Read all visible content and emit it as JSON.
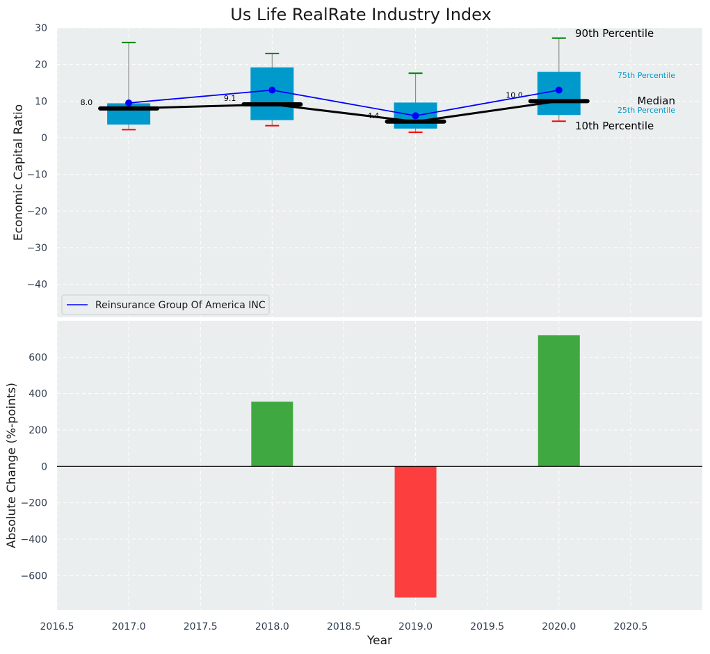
{
  "chart_data": [
    {
      "type": "box",
      "title": "Us Life RealRate Industry Index",
      "ylabel": "Economic Capital Ratio",
      "ylim": [
        -49,
        30
      ],
      "yticks": [
        30,
        20,
        10,
        0,
        -10,
        -20,
        -30,
        -40
      ],
      "xlim": [
        2016.5,
        2021.0
      ],
      "grid": true,
      "boxes": [
        {
          "x": 2017,
          "p10": 2.2,
          "p25": 3.6,
          "median": 8.0,
          "p75": 9.4,
          "p90": 26.0
        },
        {
          "x": 2018,
          "p10": 3.3,
          "p25": 4.8,
          "median": 9.1,
          "p75": 19.2,
          "p90": 23.0
        },
        {
          "x": 2019,
          "p10": 1.5,
          "p25": 2.5,
          "median": 4.4,
          "p75": 9.6,
          "p90": 17.6
        },
        {
          "x": 2020,
          "p10": 4.5,
          "p25": 6.2,
          "median": 10.0,
          "p75": 18.0,
          "p90": 27.2
        }
      ],
      "median_labels": [
        "8.0",
        "9.1",
        "4.4",
        "10.0"
      ],
      "series": [
        {
          "name": "Reinsurance Group Of America INC",
          "x": [
            2017,
            2018,
            2019,
            2020
          ],
          "y": [
            9.5,
            13.0,
            6.0,
            13.0
          ],
          "color": "#0000ff"
        }
      ],
      "annotations": {
        "p90": "90th Percentile",
        "p75": "75th Percentile",
        "median": "Median",
        "p25": "25th Percentile",
        "p10": "10th Percentile"
      },
      "legend": "lower-left",
      "colors": {
        "box": "#0099cc",
        "median": "#000000",
        "p90_cap": "#008000",
        "p10_cap": "#ff0000",
        "background": "#eaeeef"
      }
    },
    {
      "type": "bar",
      "ylabel": "Absolute Change (%-points)",
      "xlabel": "Year",
      "ylim": [
        -790,
        800
      ],
      "yticks": [
        600,
        400,
        200,
        0,
        -200,
        -400,
        -600
      ],
      "xlim": [
        2016.5,
        2021.0
      ],
      "xticks": [
        2016.5,
        2017.0,
        2017.5,
        2018.0,
        2018.5,
        2019.0,
        2019.5,
        2020.0,
        2020.5
      ],
      "xtick_labels": [
        "2016.5",
        "2017.0",
        "2017.5",
        "2018.0",
        "2018.5",
        "2019.0",
        "2019.5",
        "2020.0",
        "2020.5"
      ],
      "x": [
        2018,
        2019,
        2020
      ],
      "values": [
        355,
        -720,
        720
      ],
      "colors": {
        "positive": "#2ca02c",
        "negative": "#ff2a2a",
        "zero_line": "#000000"
      }
    }
  ]
}
